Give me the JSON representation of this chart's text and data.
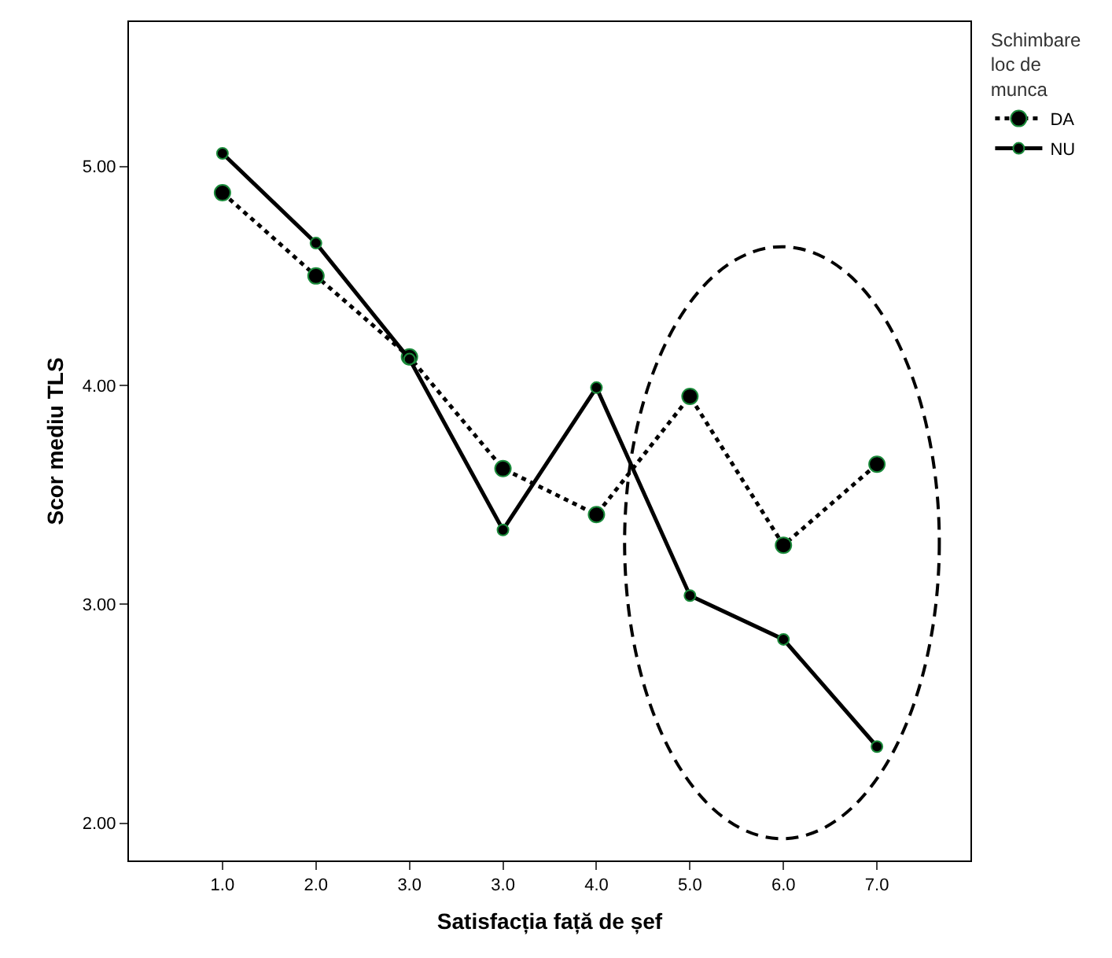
{
  "chart_data": {
    "type": "line",
    "xlabel": "Satisfacția față de șef",
    "ylabel": "Scor mediu TLS",
    "legend_title": "Schimbare loc de munca",
    "categories": [
      "1.0",
      "2.0",
      "3.0",
      "3.0",
      "4.0",
      "5.0",
      "6.0",
      "7.0"
    ],
    "series": [
      {
        "name": "DA",
        "color": "#000000",
        "line_style": "dotted",
        "values": [
          4.88,
          4.5,
          4.13,
          3.62,
          3.41,
          3.95,
          3.27,
          3.64
        ]
      },
      {
        "name": "NU",
        "color": "#000000",
        "line_style": "solid",
        "values": [
          5.06,
          4.65,
          4.12,
          3.34,
          3.99,
          3.04,
          2.84,
          2.35
        ]
      }
    ],
    "ylim": [
      1.83,
      5.66
    ],
    "yticks": [
      {
        "value": 2,
        "label": "2.00"
      },
      {
        "value": 3,
        "label": "3.00"
      },
      {
        "value": 4,
        "label": "4.00"
      },
      {
        "value": 5,
        "label": "5.00"
      }
    ],
    "marker": "circle",
    "grid": false,
    "legend": "top right"
  }
}
